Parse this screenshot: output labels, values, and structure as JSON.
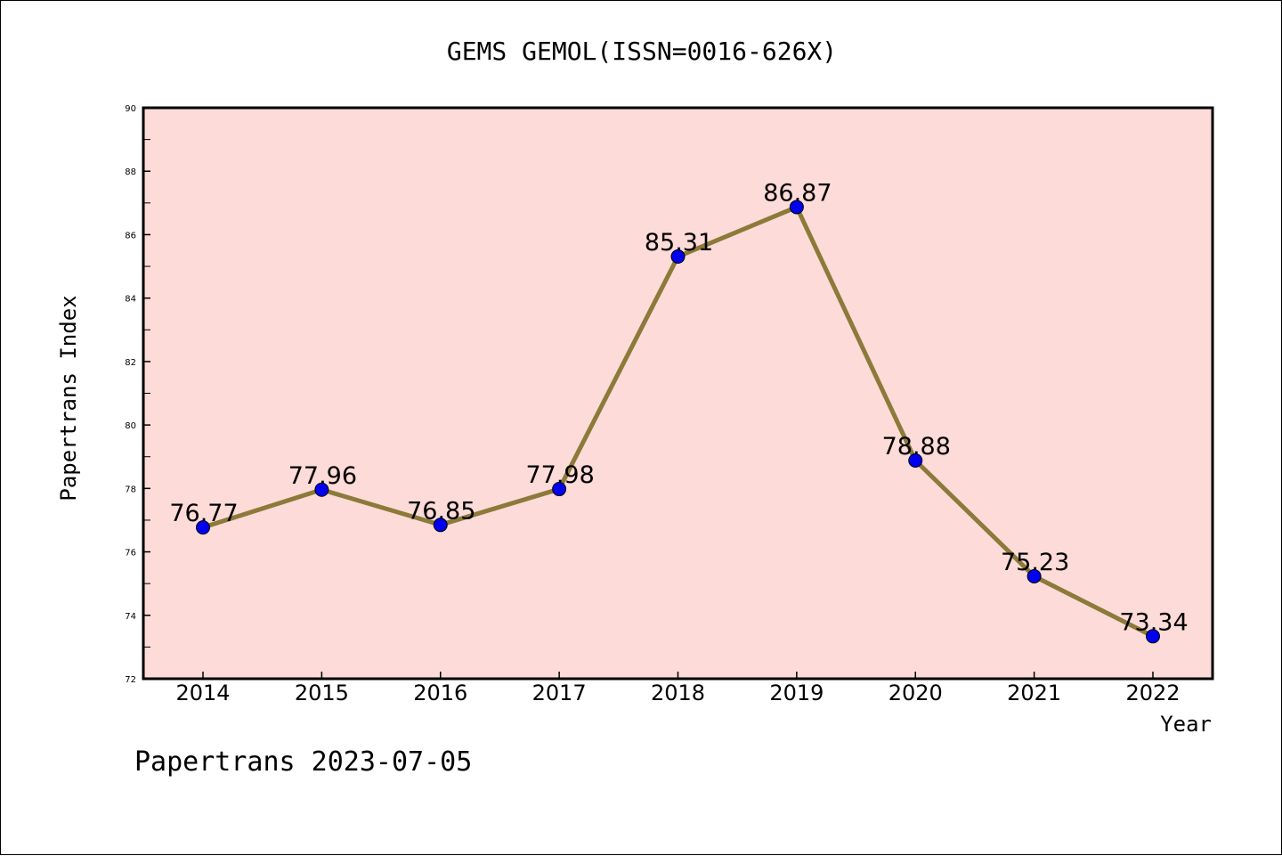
{
  "chart_data": {
    "type": "line",
    "title": "GEMS GEMOL(ISSN=0016-626X)",
    "xlabel": "Year",
    "ylabel": "Papertrans Index",
    "categories": [
      "2014",
      "2015",
      "2016",
      "2017",
      "2018",
      "2019",
      "2020",
      "2021",
      "2022"
    ],
    "series": [
      {
        "values": [
          76.77,
          77.96,
          76.85,
          77.98,
          85.31,
          86.87,
          78.88,
          75.23,
          73.34
        ],
        "labels": [
          "76.77",
          "77.96",
          "76.85",
          "77.98",
          "85.31",
          "86.87",
          "78.88",
          "75.23",
          "73.34"
        ]
      }
    ],
    "ylim": [
      72,
      90
    ],
    "yticks": [
      "72",
      "74",
      "76",
      "78",
      "80",
      "82",
      "84",
      "86",
      "88",
      "90"
    ],
    "grid": false,
    "legend": "none",
    "colors": {
      "plot_background": "#fcdbd8",
      "line": "#8c7a3a",
      "marker": "#0000ee"
    }
  },
  "footer": {
    "text": "Papertrans 2023-07-05"
  }
}
